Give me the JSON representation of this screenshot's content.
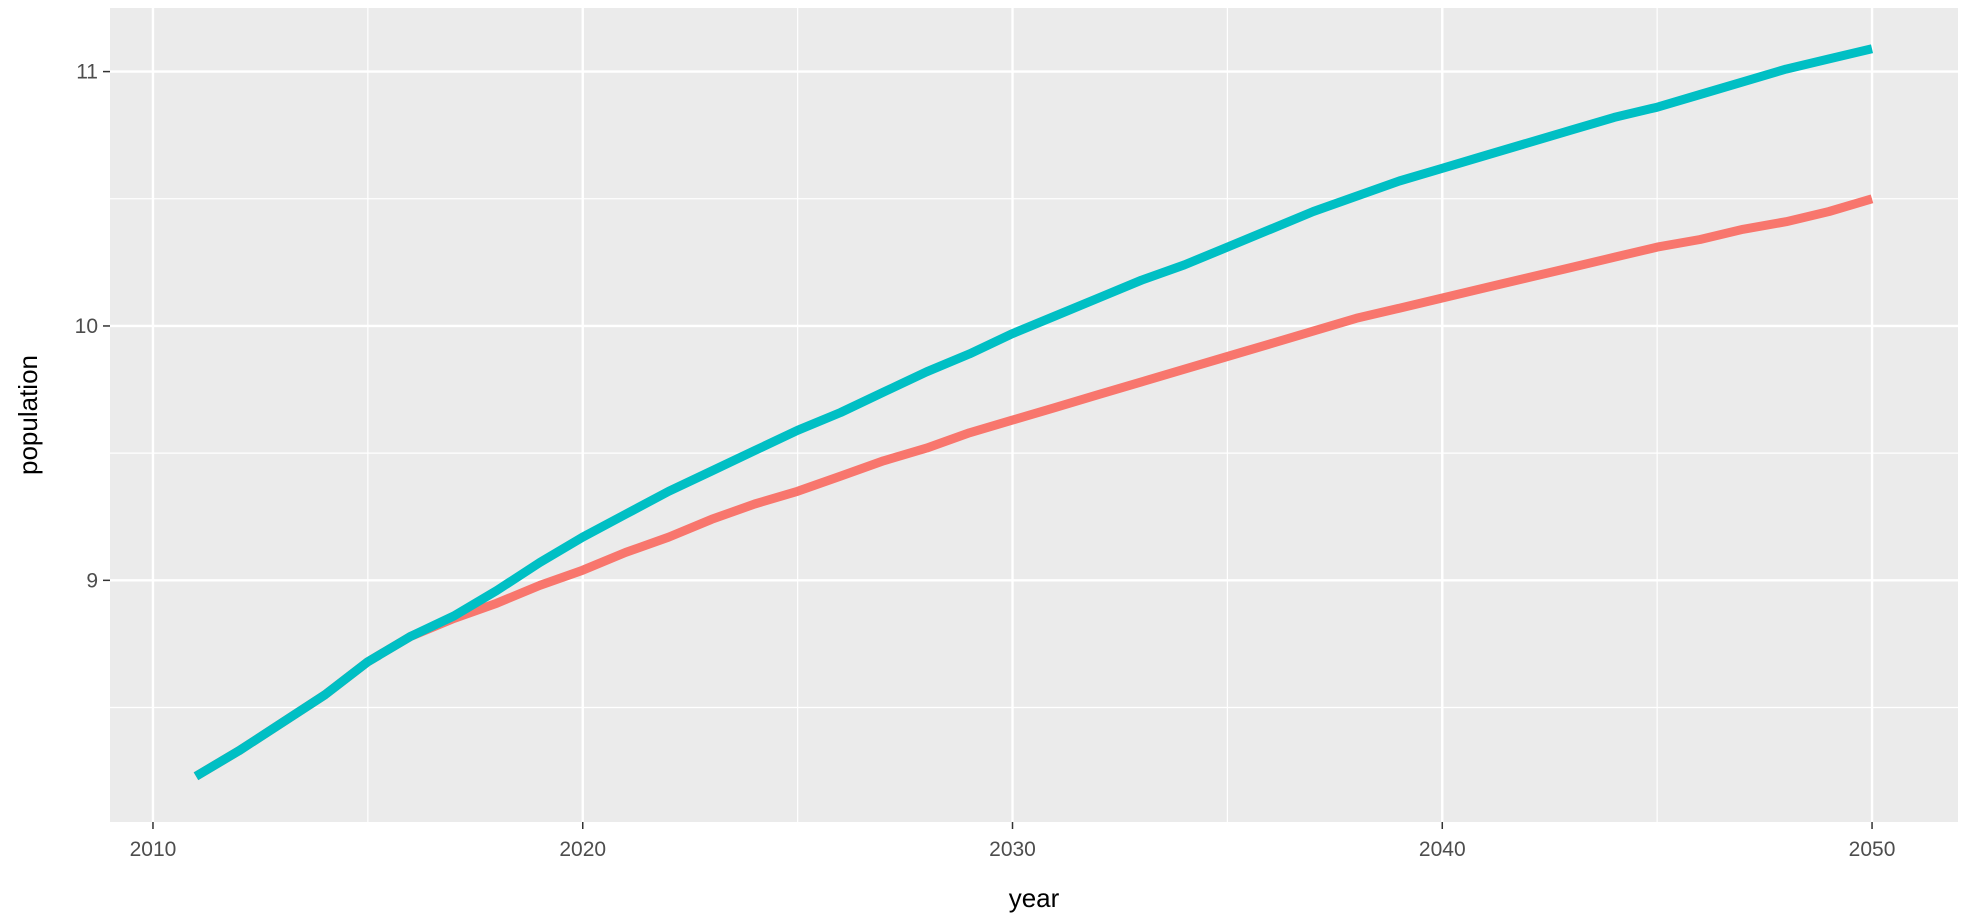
{
  "chart_data": {
    "type": "line",
    "title": "",
    "xlabel": "year",
    "ylabel": "population",
    "xlim": [
      2009,
      2052
    ],
    "ylim": [
      8.05,
      11.25
    ],
    "x_ticks": [
      2010,
      2020,
      2030,
      2040,
      2050
    ],
    "x_tick_labels": [
      "2010",
      "2020",
      "2030",
      "2040",
      "2050"
    ],
    "y_ticks": [
      9,
      10,
      11
    ],
    "y_tick_labels": [
      "9",
      "10",
      "11"
    ],
    "grid": true,
    "legend": "none",
    "series": [
      {
        "color": "#F8766D",
        "x": [
          2011,
          2012,
          2013,
          2014,
          2015,
          2016,
          2017,
          2018,
          2019,
          2020,
          2021,
          2022,
          2023,
          2024,
          2025,
          2026,
          2027,
          2028,
          2029,
          2030,
          2031,
          2032,
          2033,
          2034,
          2035,
          2036,
          2037,
          2038,
          2039,
          2040,
          2041,
          2042,
          2043,
          2044,
          2045,
          2046,
          2047,
          2048,
          2049,
          2050
        ],
        "values": [
          8.23,
          8.33,
          8.44,
          8.55,
          8.68,
          8.78,
          8.85,
          8.91,
          8.98,
          9.04,
          9.11,
          9.17,
          9.24,
          9.3,
          9.35,
          9.41,
          9.47,
          9.52,
          9.58,
          9.63,
          9.68,
          9.73,
          9.78,
          9.83,
          9.88,
          9.93,
          9.98,
          10.03,
          10.07,
          10.11,
          10.15,
          10.19,
          10.23,
          10.27,
          10.31,
          10.34,
          10.38,
          10.41,
          10.45,
          10.5
        ]
      },
      {
        "color": "#00BFC4",
        "x": [
          2011,
          2012,
          2013,
          2014,
          2015,
          2016,
          2017,
          2018,
          2019,
          2020,
          2021,
          2022,
          2023,
          2024,
          2025,
          2026,
          2027,
          2028,
          2029,
          2030,
          2031,
          2032,
          2033,
          2034,
          2035,
          2036,
          2037,
          2038,
          2039,
          2040,
          2041,
          2042,
          2043,
          2044,
          2045,
          2046,
          2047,
          2048,
          2049,
          2050
        ],
        "values": [
          8.23,
          8.33,
          8.44,
          8.55,
          8.68,
          8.78,
          8.86,
          8.96,
          9.07,
          9.17,
          9.26,
          9.35,
          9.43,
          9.51,
          9.59,
          9.66,
          9.74,
          9.82,
          9.89,
          9.97,
          10.04,
          10.11,
          10.18,
          10.24,
          10.31,
          10.38,
          10.45,
          10.51,
          10.57,
          10.62,
          10.67,
          10.72,
          10.77,
          10.82,
          10.86,
          10.91,
          10.96,
          11.01,
          11.05,
          11.09
        ]
      }
    ]
  }
}
